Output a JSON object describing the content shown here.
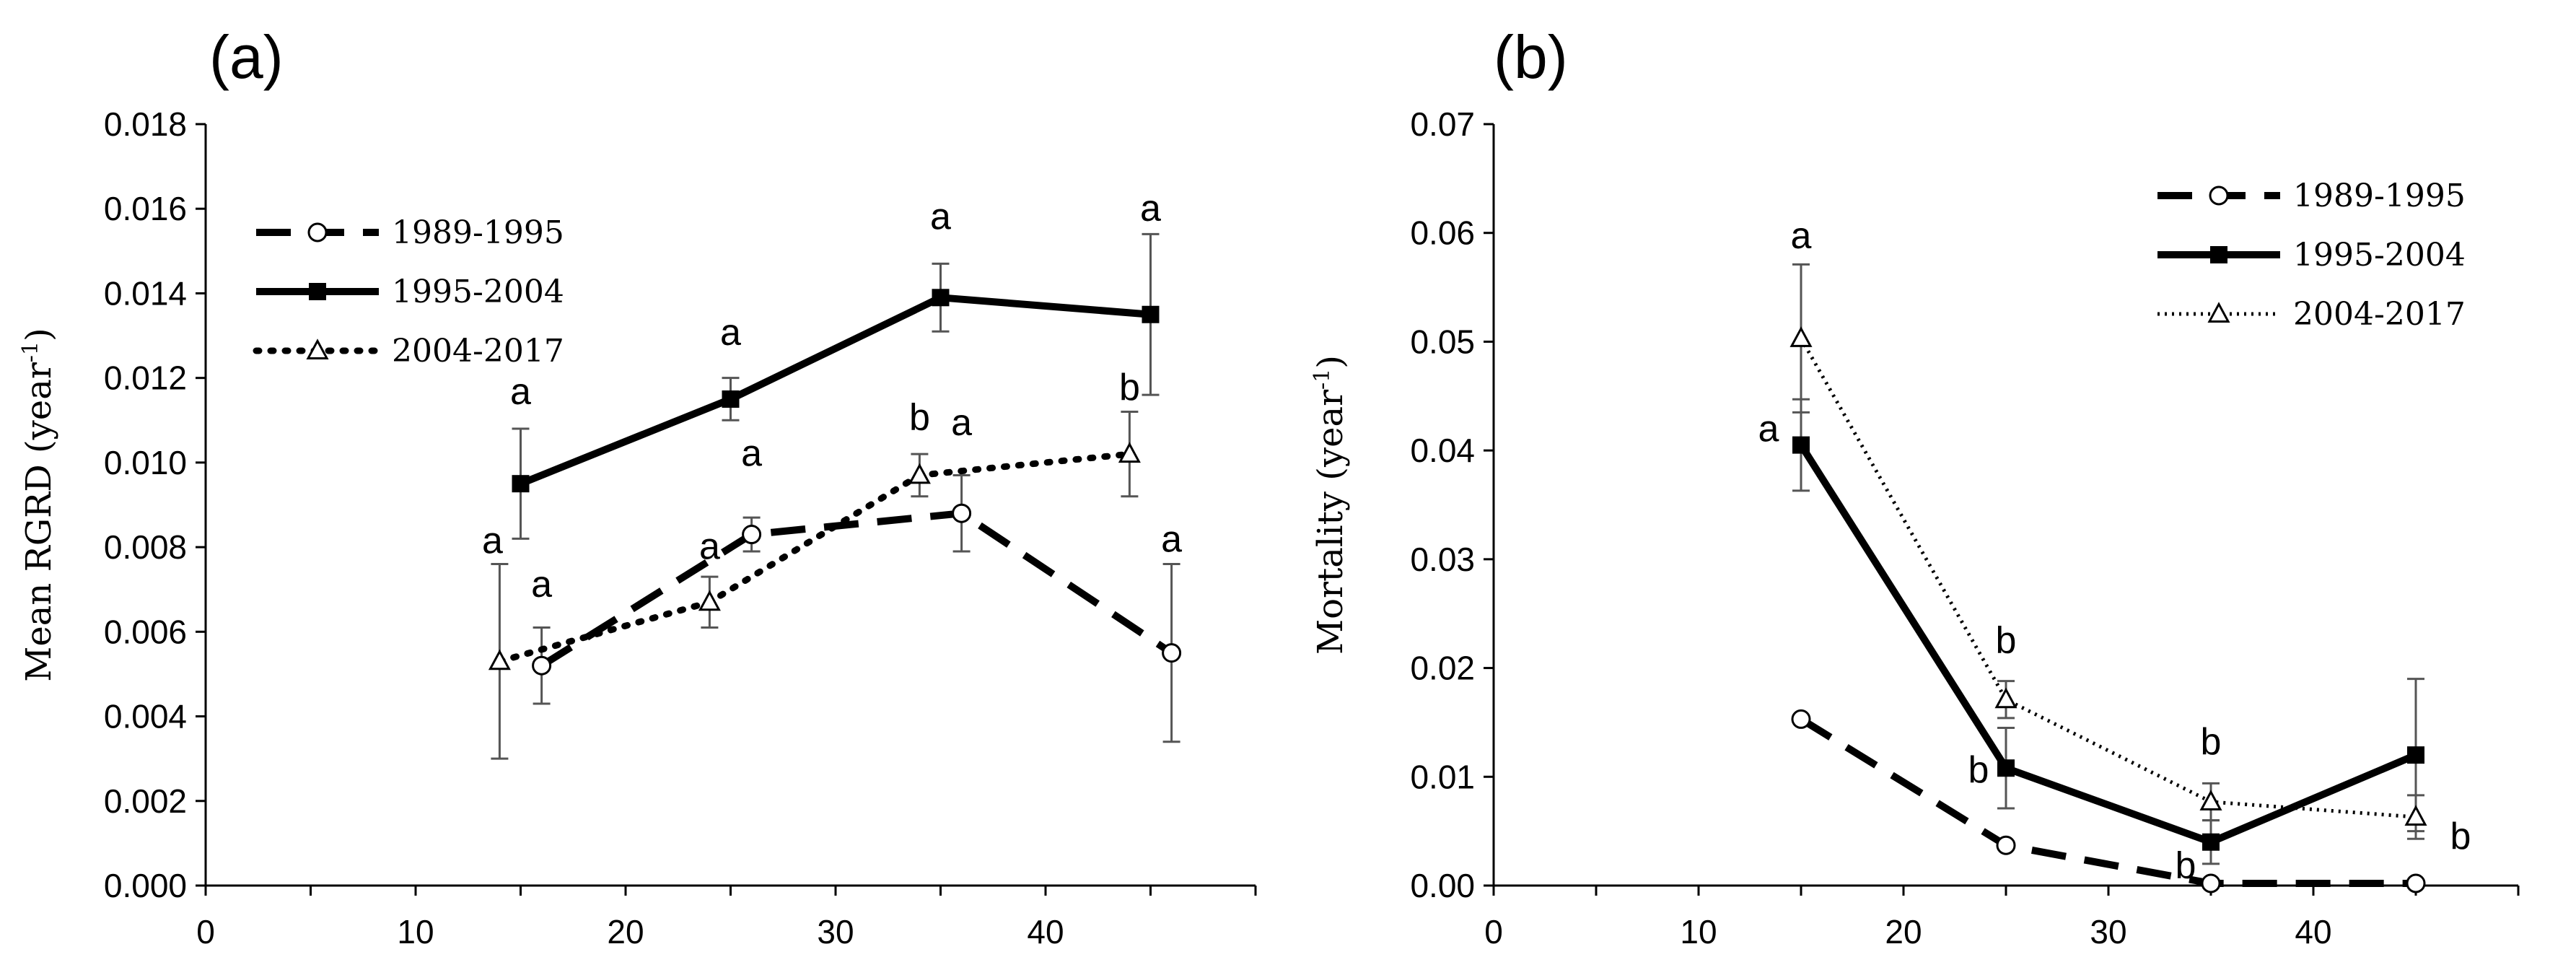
{
  "chart_data": [
    {
      "type": "line",
      "panel_label": "(a)",
      "ylabel": "Mean RGRD (year⁻¹)",
      "ylabel_text": "Mean RGRD (year",
      "ylabel_sup": "-1",
      "ylabel_close": ")",
      "xlabel": "",
      "xlim": [
        0,
        50
      ],
      "ylim": [
        0,
        0.018
      ],
      "xticks": [
        "0",
        "10",
        "20",
        "30",
        "40"
      ],
      "yticks": [
        "0.000",
        "0.002",
        "0.004",
        "0.006",
        "0.008",
        "0.010",
        "0.012",
        "0.014",
        "0.016",
        "0.018"
      ],
      "legend_position": "upper-left",
      "series": [
        {
          "name": "1989-1995",
          "style": "dashed",
          "marker": "circle",
          "x": [
            16,
            26,
            36,
            46
          ],
          "values": [
            0.0052,
            0.0083,
            0.0088,
            0.0055
          ],
          "err": [
            0.0009,
            0.0004,
            0.0009,
            0.0021
          ],
          "letters": [
            "a",
            "a",
            "a",
            "a"
          ]
        },
        {
          "name": "1995-2004",
          "style": "solid",
          "marker": "square",
          "x": [
            15,
            25,
            35,
            45
          ],
          "values": [
            0.0095,
            0.0115,
            0.0139,
            0.0135
          ],
          "err": [
            0.0013,
            0.0005,
            0.0008,
            0.0019
          ],
          "letters": [
            "a",
            "a",
            "a",
            "a"
          ]
        },
        {
          "name": "2004-2017",
          "style": "dotted",
          "marker": "triangle",
          "x": [
            14,
            24,
            34,
            44
          ],
          "values": [
            0.0053,
            0.0067,
            0.0097,
            0.0102
          ],
          "err": [
            0.0023,
            0.0006,
            0.0005,
            0.001
          ],
          "letters": [
            "a",
            "a",
            "b",
            "b"
          ]
        }
      ]
    },
    {
      "type": "line",
      "panel_label": "(b)",
      "ylabel": "Mortality (year⁻¹)",
      "ylabel_text": "Mortality (year",
      "ylabel_sup": "-1",
      "ylabel_close": ")",
      "xlabel": "",
      "xlim": [
        0,
        50
      ],
      "ylim": [
        0,
        0.07
      ],
      "xticks": [
        "0",
        "10",
        "20",
        "30",
        "40"
      ],
      "yticks": [
        "0.00",
        "0.01",
        "0.02",
        "0.03",
        "0.04",
        "0.05",
        "0.06",
        "0.07"
      ],
      "legend_position": "upper-right",
      "series": [
        {
          "name": "1989-1995",
          "style": "dashed",
          "marker": "circle",
          "x": [
            15,
            25,
            35,
            45
          ],
          "values": [
            0.0153,
            0.0037,
            0.0002,
            0.0002
          ],
          "err": [
            0,
            0,
            0,
            0
          ],
          "letters": [
            "",
            "",
            "",
            ""
          ]
        },
        {
          "name": "1995-2004",
          "style": "solid",
          "marker": "square",
          "x": [
            15,
            25,
            35,
            45
          ],
          "values": [
            0.0405,
            0.0108,
            0.004,
            0.012
          ],
          "err": [
            0.0042,
            0.0037,
            0.002,
            0.007
          ],
          "letters": [
            "a",
            "b",
            "b",
            ""
          ]
        },
        {
          "name": "2004-2017",
          "style": "thin-dotted",
          "marker": "triangle",
          "x": [
            15,
            25,
            35,
            45
          ],
          "values": [
            0.0503,
            0.0171,
            0.0077,
            0.0063
          ],
          "err": [
            0.0068,
            0.0017,
            0.0017,
            0.002
          ],
          "letters": [
            "a",
            "b",
            "b",
            "b"
          ]
        }
      ]
    }
  ]
}
